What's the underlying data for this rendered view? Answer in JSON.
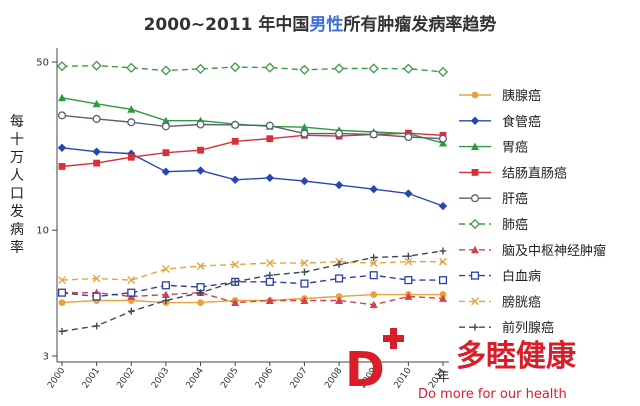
{
  "chart_data": {
    "type": "line",
    "title_parts": [
      "2000~2011 年中国",
      "男性",
      "所有肿瘤发病率趋势"
    ],
    "xlabel": "年",
    "ylabel": "每十万人口发病率",
    "y_scale": "log",
    "ylim": [
      3,
      50
    ],
    "y_ticks": [
      "3",
      "10",
      "50"
    ],
    "x": [
      "2000",
      "2001",
      "2002",
      "2003",
      "2004",
      "2005",
      "2006",
      "2007",
      "2008",
      "2009",
      "2010",
      "2011"
    ],
    "grid": false,
    "legend_position": "right",
    "series": [
      {
        "name": "胰腺癌",
        "color": "#e8a33c",
        "dash": "solid",
        "marker": "circle",
        "values": [
          5.0,
          5.1,
          5.1,
          5.0,
          5.0,
          5.1,
          5.1,
          5.2,
          5.3,
          5.4,
          5.4,
          5.4
        ]
      },
      {
        "name": "食管癌",
        "color": "#2945b5",
        "dash": "solid",
        "marker": "diamond",
        "values": [
          22.0,
          21.2,
          20.8,
          17.5,
          17.7,
          16.2,
          16.5,
          16.0,
          15.4,
          14.8,
          14.2,
          12.6
        ]
      },
      {
        "name": "胃癌",
        "color": "#2e9a3e",
        "dash": "solid",
        "marker": "triangle",
        "values": [
          35.5,
          33.5,
          31.8,
          28.5,
          28.5,
          27.6,
          27.0,
          26.8,
          26.0,
          25.6,
          25.2,
          23.0
        ]
      },
      {
        "name": "结肠直肠癌",
        "color": "#d6303a",
        "dash": "solid",
        "marker": "square",
        "values": [
          18.4,
          19.0,
          20.1,
          21.0,
          21.5,
          23.4,
          24.0,
          24.8,
          24.6,
          25.0,
          25.3,
          24.8
        ]
      },
      {
        "name": "肝癌",
        "color": "#556270",
        "dash": "solid",
        "marker": "circle-open",
        "values": [
          30.0,
          29.0,
          28.1,
          27.0,
          27.5,
          27.4,
          27.2,
          25.2,
          25.2,
          25.0,
          24.4,
          24.0
        ]
      },
      {
        "name": "肺癌",
        "color": "#3f9a45",
        "dash": "dashed",
        "marker": "diamond-open",
        "values": [
          48.0,
          48.3,
          47.3,
          46.1,
          46.8,
          47.6,
          47.4,
          46.4,
          47.0,
          47.0,
          46.9,
          45.5
        ]
      },
      {
        "name": "脑及中枢神经肿瘤",
        "color": "#d6404a",
        "dash": "dashed",
        "marker": "triangle",
        "values": [
          5.5,
          5.5,
          5.3,
          5.4,
          5.5,
          5.0,
          5.1,
          5.1,
          5.1,
          4.9,
          5.3,
          5.2
        ]
      },
      {
        "name": "白血病",
        "color": "#2a3fa8",
        "dash": "dashed",
        "marker": "square-open",
        "values": [
          5.5,
          5.3,
          5.5,
          5.9,
          5.8,
          6.1,
          6.1,
          6.0,
          6.3,
          6.5,
          6.2,
          6.2
        ]
      },
      {
        "name": "膀胱癌",
        "color": "#e8a33c",
        "dash": "dashed",
        "marker": "x",
        "values": [
          6.2,
          6.3,
          6.2,
          6.9,
          7.1,
          7.2,
          7.3,
          7.3,
          7.4,
          7.3,
          7.4,
          7.4
        ]
      },
      {
        "name": "前列腺癌",
        "color": "#3e4a57",
        "dash": "dashed",
        "marker": "plus",
        "values": [
          3.8,
          4.0,
          4.6,
          5.1,
          5.5,
          6.1,
          6.5,
          6.7,
          7.2,
          7.7,
          7.8,
          8.2
        ]
      }
    ]
  },
  "watermark": {
    "cn": "多睦健康",
    "en": "Do more for our health",
    "color": "#d91e2a"
  }
}
